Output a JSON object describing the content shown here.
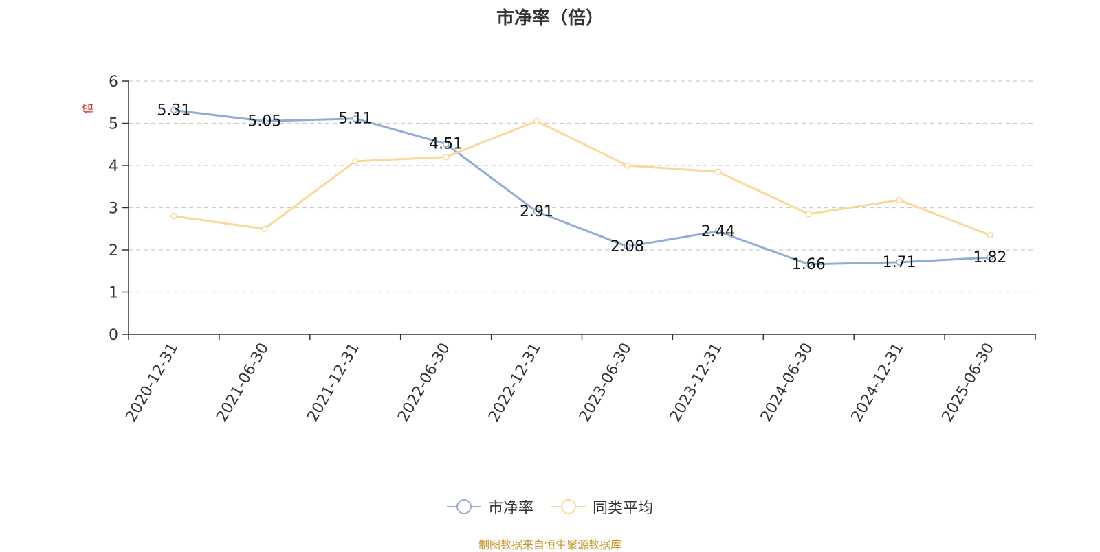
{
  "chart_data": {
    "type": "line",
    "title": "市净率（倍）",
    "ylabel": "倍",
    "xlabel": "",
    "ylim": [
      0,
      6
    ],
    "yticks": [
      0,
      1,
      2,
      3,
      4,
      5,
      6
    ],
    "grid": "horizontal-dashed",
    "legend_placement": "bottom-center",
    "categories": [
      "2020-12-31",
      "2021-06-30",
      "2021-12-31",
      "2022-06-30",
      "2022-12-31",
      "2023-06-30",
      "2023-12-31",
      "2024-06-30",
      "2024-12-31",
      "2025-06-30"
    ],
    "series": [
      {
        "name": "市净率",
        "color": "#8eacd6",
        "show_labels": true,
        "values": [
          5.31,
          5.05,
          5.11,
          4.51,
          2.91,
          2.08,
          2.44,
          1.66,
          1.71,
          1.82
        ],
        "labels": [
          "5.31",
          "5.05",
          "5.11",
          "4.51",
          "2.91",
          "2.08",
          "2.44",
          "1.66",
          "1.71",
          "1.82"
        ]
      },
      {
        "name": "同类平均",
        "color": "#fad898",
        "show_labels": false,
        "values": [
          2.8,
          2.5,
          4.1,
          4.2,
          5.05,
          4.0,
          3.85,
          2.85,
          3.18,
          2.35
        ]
      }
    ]
  },
  "footer": {
    "source": "制图数据来自恒生聚源数据库"
  }
}
